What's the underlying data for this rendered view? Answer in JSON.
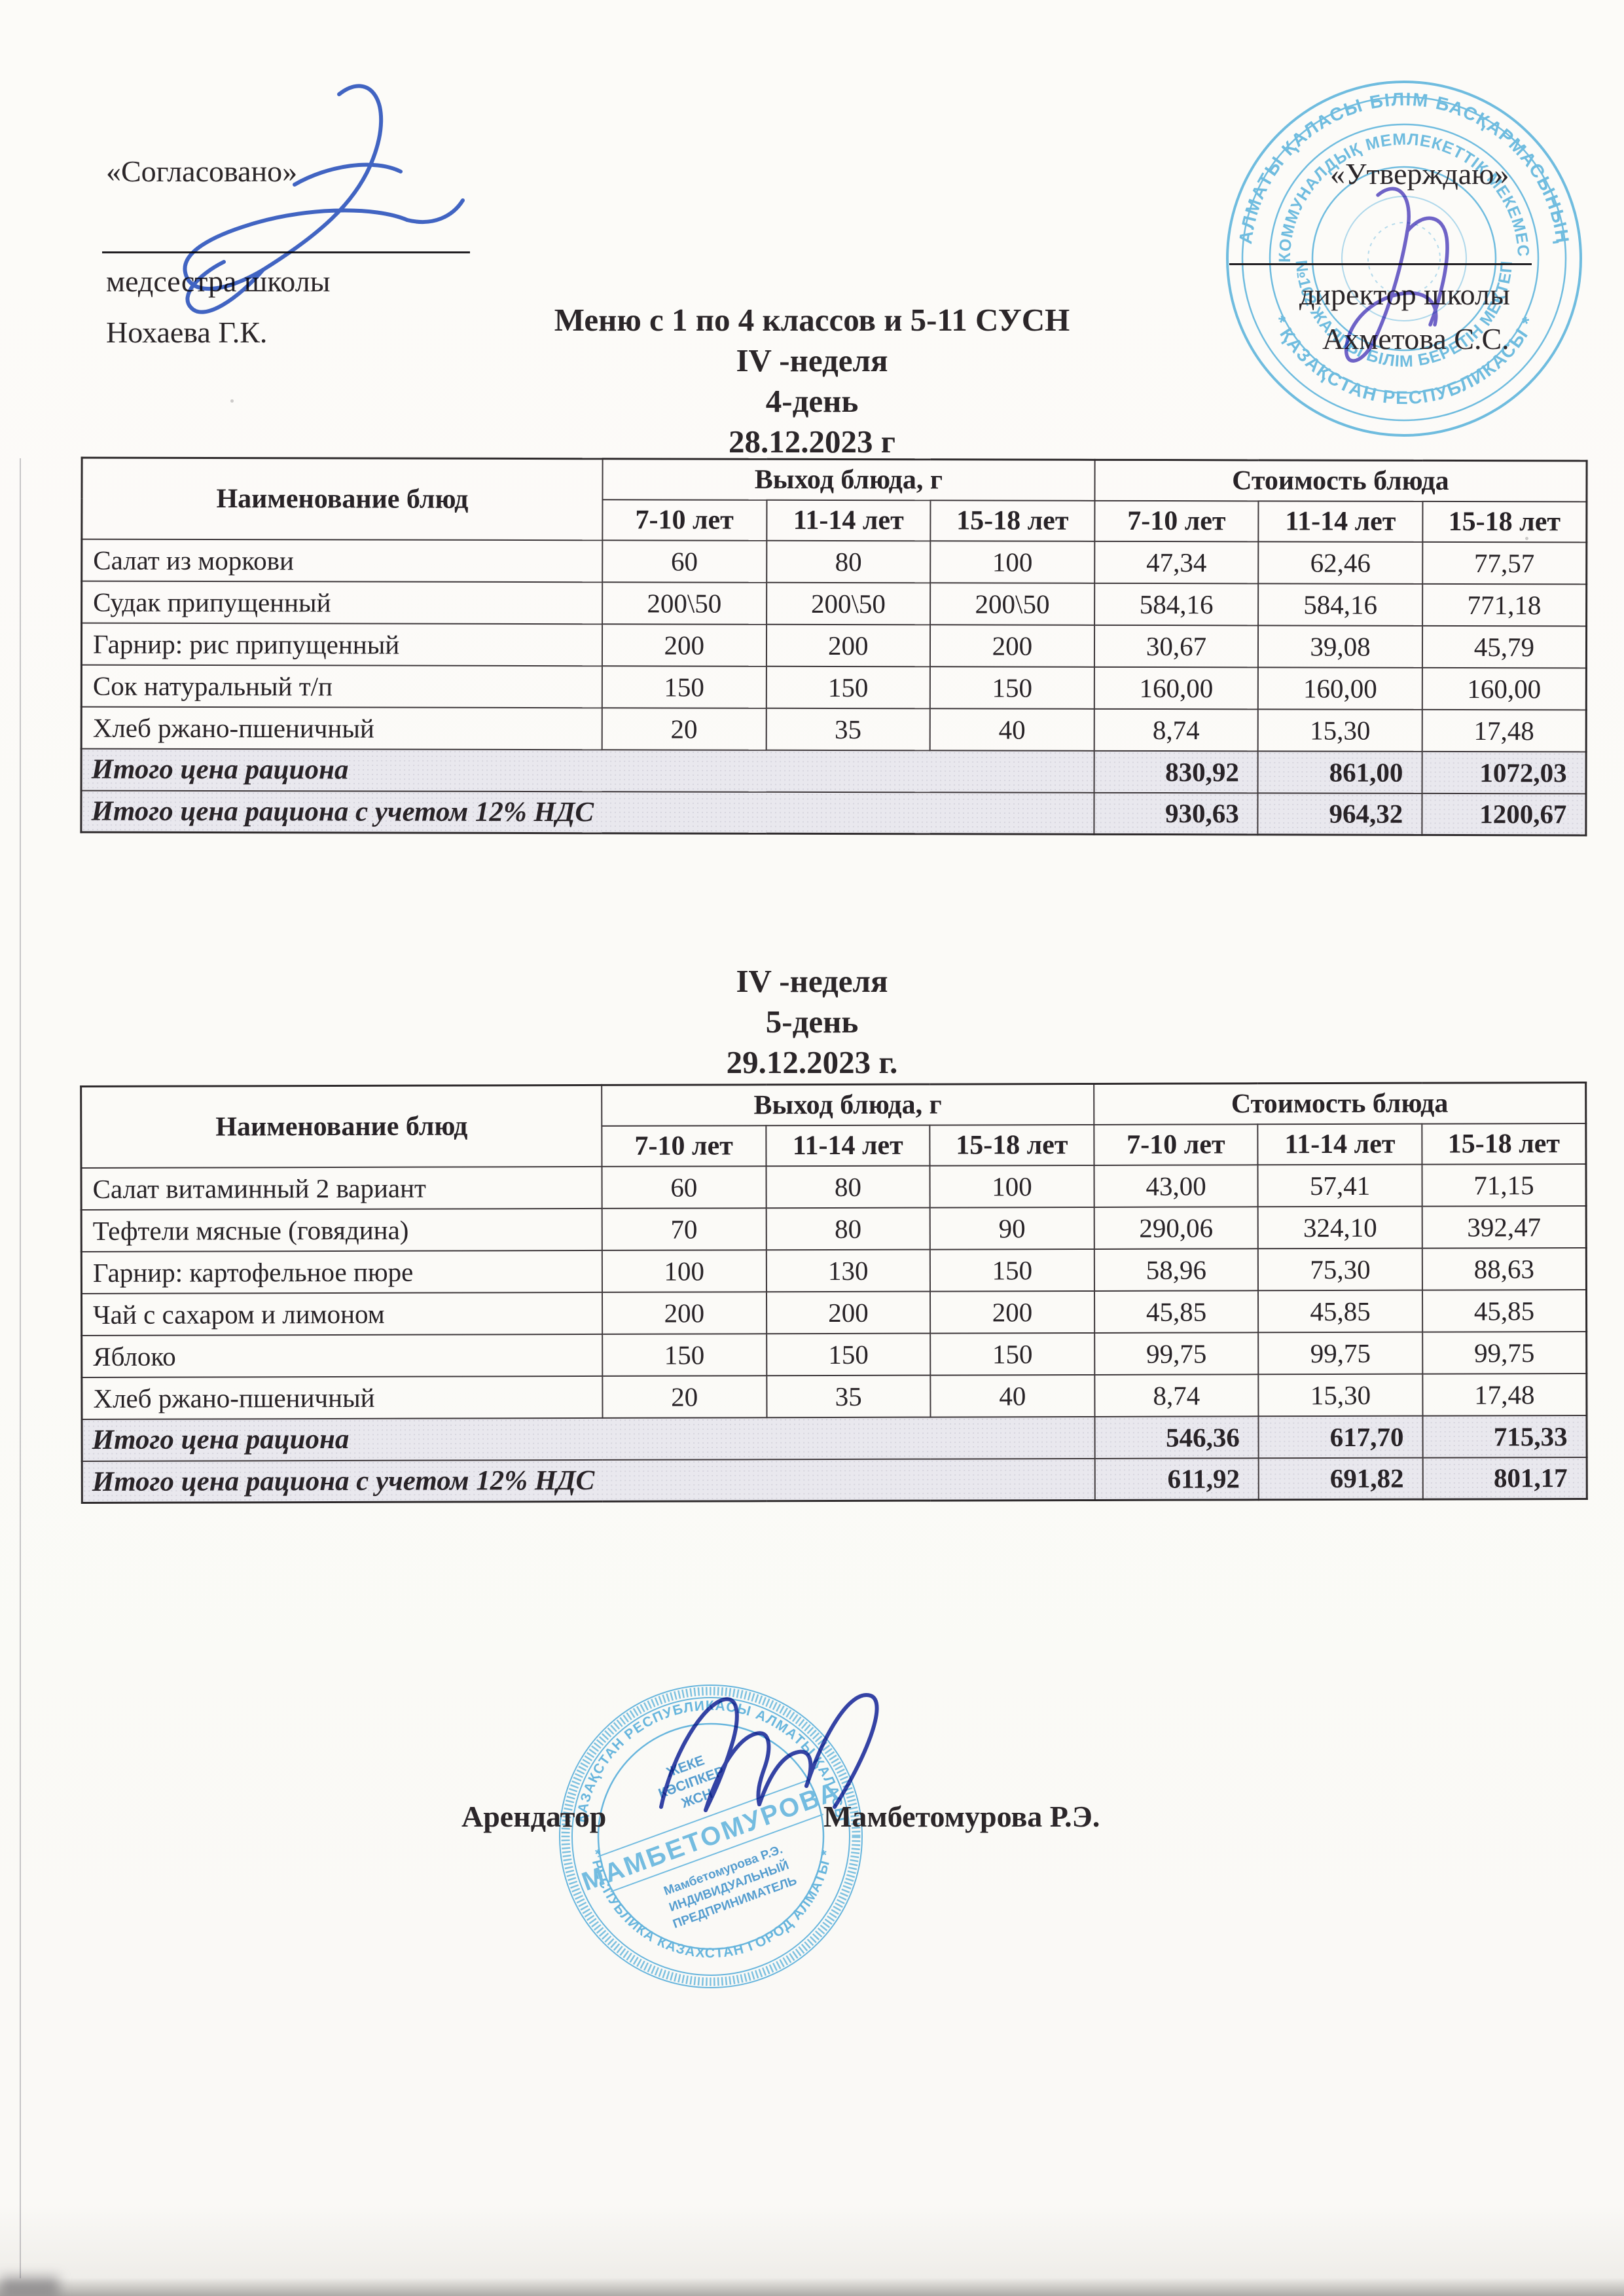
{
  "approve_left": {
    "title": "«Согласовано»",
    "role": "медсестра школы",
    "name": "Нохаева Г.К."
  },
  "approve_right": {
    "title": "«Утверждаю»",
    "role": "директор школы",
    "name": "Ахметова С.С."
  },
  "menu1": {
    "title": "Меню с 1 по 4 классов и 5-11 СУСН",
    "week": "IV -неделя",
    "day": "4-день",
    "date": "28.12.2023 г",
    "table": {
      "head_name": "Наименование блюд",
      "head_output": "Выход блюда, г",
      "head_cost": "Стоимость блюда",
      "ages": [
        "7-10 лет",
        "11-14 лет",
        "15-18 лет"
      ],
      "rows": [
        {
          "name": "Салат из моркови",
          "out": [
            "60",
            "80",
            "100"
          ],
          "cost": [
            "47,34",
            "62,46",
            "77,57"
          ]
        },
        {
          "name": "Судак припущенный",
          "out": [
            "200\\50",
            "200\\50",
            "200\\50"
          ],
          "cost": [
            "584,16",
            "584,16",
            "771,18"
          ]
        },
        {
          "name": "Гарнир: рис припущенный",
          "out": [
            "200",
            "200",
            "200"
          ],
          "cost": [
            "30,67",
            "39,08",
            "45,79"
          ]
        },
        {
          "name": "Сок натуральный т/п",
          "out": [
            "150",
            "150",
            "150"
          ],
          "cost": [
            "160,00",
            "160,00",
            "160,00"
          ]
        },
        {
          "name": "Хлеб ржано-пшеничный",
          "out": [
            "20",
            "35",
            "40"
          ],
          "cost": [
            "8,74",
            "15,30",
            "17,48"
          ]
        }
      ],
      "total": {
        "label": "Итого цена рациона",
        "values": [
          "830,92",
          "861,00",
          "1072,03"
        ]
      },
      "total_vat": {
        "label": "Итого цена рациона с учетом 12% НДС",
        "values": [
          "930,63",
          "964,32",
          "1200,67"
        ]
      }
    }
  },
  "menu2": {
    "week": "IV -неделя",
    "day": "5-день",
    "date": "29.12.2023 г.",
    "table": {
      "head_name": "Наименование блюд",
      "head_output": "Выход блюда, г",
      "head_cost": "Стоимость блюда",
      "ages": [
        "7-10 лет",
        "11-14 лет",
        "15-18 лет"
      ],
      "rows": [
        {
          "name": "Салат витаминный 2 вариант",
          "out": [
            "60",
            "80",
            "100"
          ],
          "cost": [
            "43,00",
            "57,41",
            "71,15"
          ]
        },
        {
          "name": "Тефтели мясные (говядина)",
          "out": [
            "70",
            "80",
            "90"
          ],
          "cost": [
            "290,06",
            "324,10",
            "392,47"
          ]
        },
        {
          "name": "Гарнир: картофельное пюре",
          "out": [
            "100",
            "130",
            "150"
          ],
          "cost": [
            "58,96",
            "75,30",
            "88,63"
          ]
        },
        {
          "name": "Чай с сахаром и лимоном",
          "out": [
            "200",
            "200",
            "200"
          ],
          "cost": [
            "45,85",
            "45,85",
            "45,85"
          ]
        },
        {
          "name": "Яблоко",
          "out": [
            "150",
            "150",
            "150"
          ],
          "cost": [
            "99,75",
            "99,75",
            "99,75"
          ]
        },
        {
          "name": "Хлеб ржано-пшеничный",
          "out": [
            "20",
            "35",
            "40"
          ],
          "cost": [
            "8,74",
            "15,30",
            "17,48"
          ]
        }
      ],
      "total": {
        "label": "Итого цена рациона",
        "values": [
          "546,36",
          "617,70",
          "715,33"
        ]
      },
      "total_vat": {
        "label": "Итого цена рациона с учетом 12% НДС",
        "values": [
          "611,92",
          "691,82",
          "801,17"
        ]
      }
    }
  },
  "footer": {
    "label": "Арендатор",
    "name": "Мамбетомурова Р.Э."
  },
  "stamp_school": {
    "ring_top": "АЛМАТЫ ҚАЛАСЫ БІЛІМ БАСҚАРМАСЫНЫҢ",
    "ring_bottom": "* ҚАЗАҚСТАН РЕСПУБЛИКАСЫ *",
    "ring2_top": "КОММУНАЛДЫҚ МЕМЛЕКЕТТІК МЕКЕМЕСІ",
    "ring2_bottom": "* «№102 ЖАЛПЫ БІЛІМ БЕРЕТІН МЕКТЕП» *",
    "color": "#5cb6e3"
  },
  "stamp_ip": {
    "ring_top": "ҚАЗАҚСТАН РЕСПУБЛИКАСЫ АЛМАТЫ ҚАЛАСЫ",
    "ring_bottom": "* РЕСПУБЛИКА КАЗАХСТАН ГОРОД АЛМАТЫ *",
    "center_small_1": "ЖЕКЕ",
    "center_small_2": "КӘСІПКЕР",
    "center_small_3": "ЖСН",
    "center_big": "МАМБЕТОМУРОВА",
    "owner_1": "Мамбетомурова Р.Э.",
    "owner_2": "ИНДИВИДУАЛЬНЫЙ",
    "owner_3": "ПРЕДПРИНИМАТЕЛЬ",
    "color": "#54b1e2"
  }
}
